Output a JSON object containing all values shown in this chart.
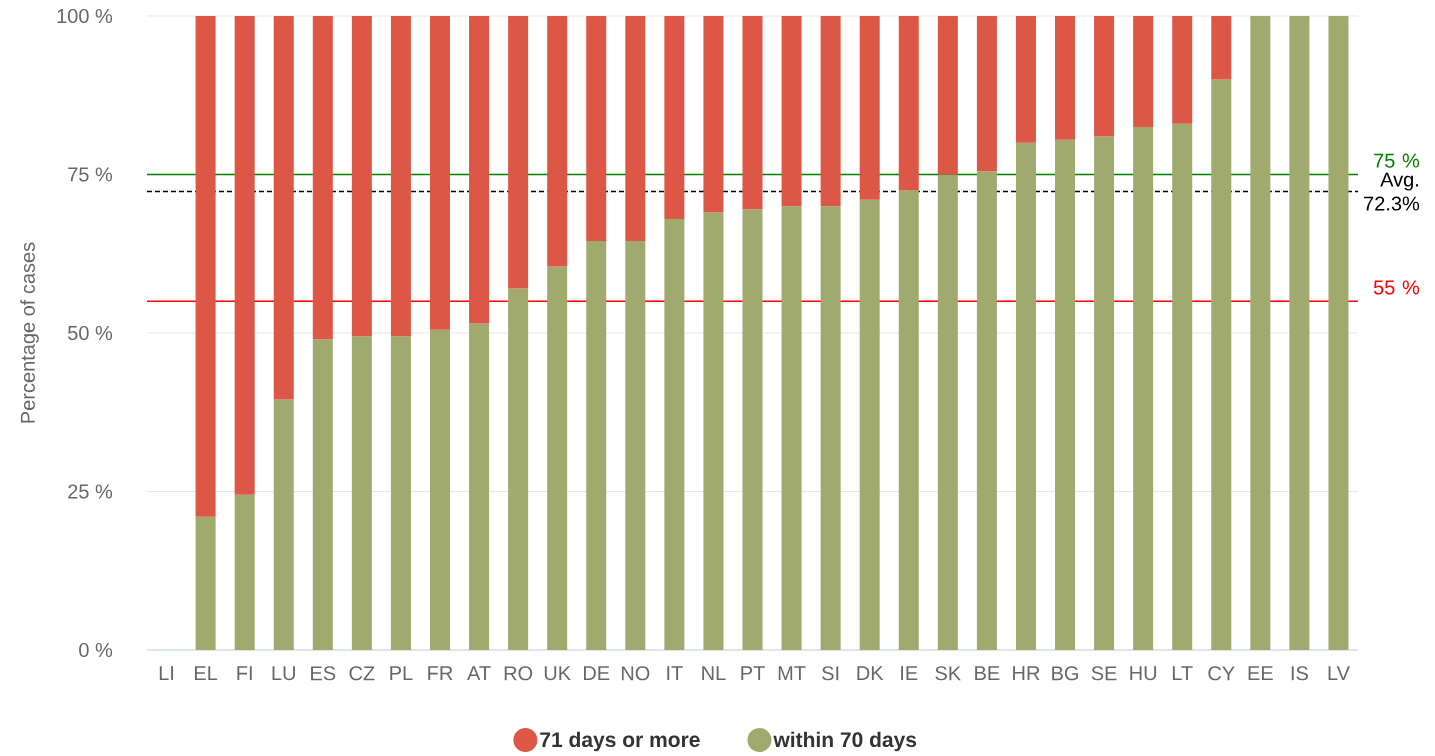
{
  "chart_data": {
    "type": "bar",
    "stacked": true,
    "ylabel": "Percentage of cases",
    "categories": [
      "LI",
      "EL",
      "FI",
      "LU",
      "ES",
      "CZ",
      "PL",
      "FR",
      "AT",
      "RO",
      "UK",
      "DE",
      "NO",
      "IT",
      "NL",
      "PT",
      "MT",
      "SI",
      "DK",
      "IE",
      "SK",
      "BE",
      "HR",
      "BG",
      "SE",
      "HU",
      "LT",
      "CY",
      "EE",
      "IS",
      "LV"
    ],
    "series": [
      {
        "name": "within 70 days",
        "color": "#a0aa6e",
        "values": [
          null,
          21,
          24.5,
          39.5,
          49,
          49.5,
          49.5,
          50.5,
          51.5,
          57,
          60.5,
          64.5,
          64.5,
          68,
          69,
          69.5,
          70,
          70,
          71,
          72.5,
          75,
          75.5,
          80,
          80.5,
          81,
          82.5,
          83,
          90,
          100,
          100,
          100
        ]
      },
      {
        "name": "71 days or more",
        "color": "#dc5745",
        "values": [
          null,
          79,
          75.5,
          60.5,
          51,
          50.5,
          50.5,
          49.5,
          48.5,
          43,
          39.5,
          35.5,
          35.5,
          32,
          31,
          30.5,
          30,
          30,
          29,
          27.5,
          25,
          24.5,
          20,
          19.5,
          19,
          17.5,
          17,
          10,
          0,
          0,
          0
        ]
      }
    ],
    "ylim": [
      0,
      100
    ],
    "yticks": [
      {
        "value": 0,
        "label": "0 %"
      },
      {
        "value": 25,
        "label": "25 %"
      },
      {
        "value": 50,
        "label": "50 %"
      },
      {
        "value": 75,
        "label": "75 %"
      },
      {
        "value": 100,
        "label": "100 %"
      }
    ],
    "grid": "y",
    "legend": "bottom",
    "ref_lines": [
      {
        "axis": "y",
        "value": 75,
        "label": "75 %",
        "color": "#008000"
      },
      {
        "axis": "y",
        "value": 72.3,
        "label": "Avg. 72.3%",
        "color": "#000000",
        "line_style": "dashed"
      },
      {
        "axis": "y",
        "value": 55,
        "label": "55 %",
        "color": "#ff0000"
      }
    ]
  }
}
